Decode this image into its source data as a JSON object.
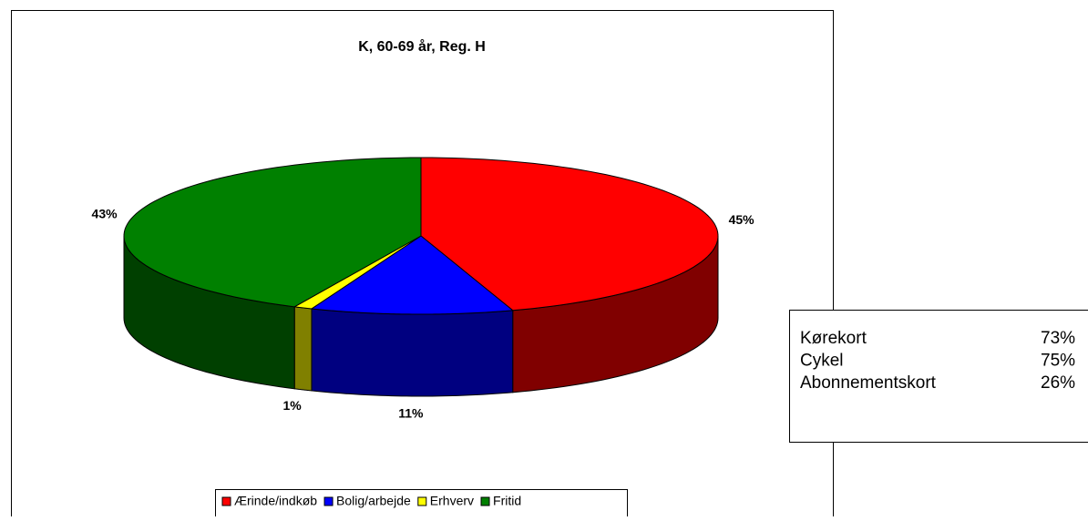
{
  "chart_data": {
    "type": "pie3d",
    "title": "K, 60-69 år, Reg. H",
    "categories": [
      "Ærinde/indkøb",
      "Bolig/arbejde",
      "Erhverv",
      "Fritid"
    ],
    "values": [
      45,
      11,
      1,
      43
    ],
    "value_labels": [
      "45%",
      "11%",
      "1%",
      "43%"
    ],
    "colors": [
      "#ff0000",
      "#0000ff",
      "#ffff00",
      "#008000"
    ],
    "legend": "bottom"
  },
  "info_box": {
    "rows": [
      [
        "Kørekort",
        "73%"
      ],
      [
        "Cykel",
        "75%"
      ],
      [
        "Abonnementskort",
        "26%"
      ]
    ]
  }
}
